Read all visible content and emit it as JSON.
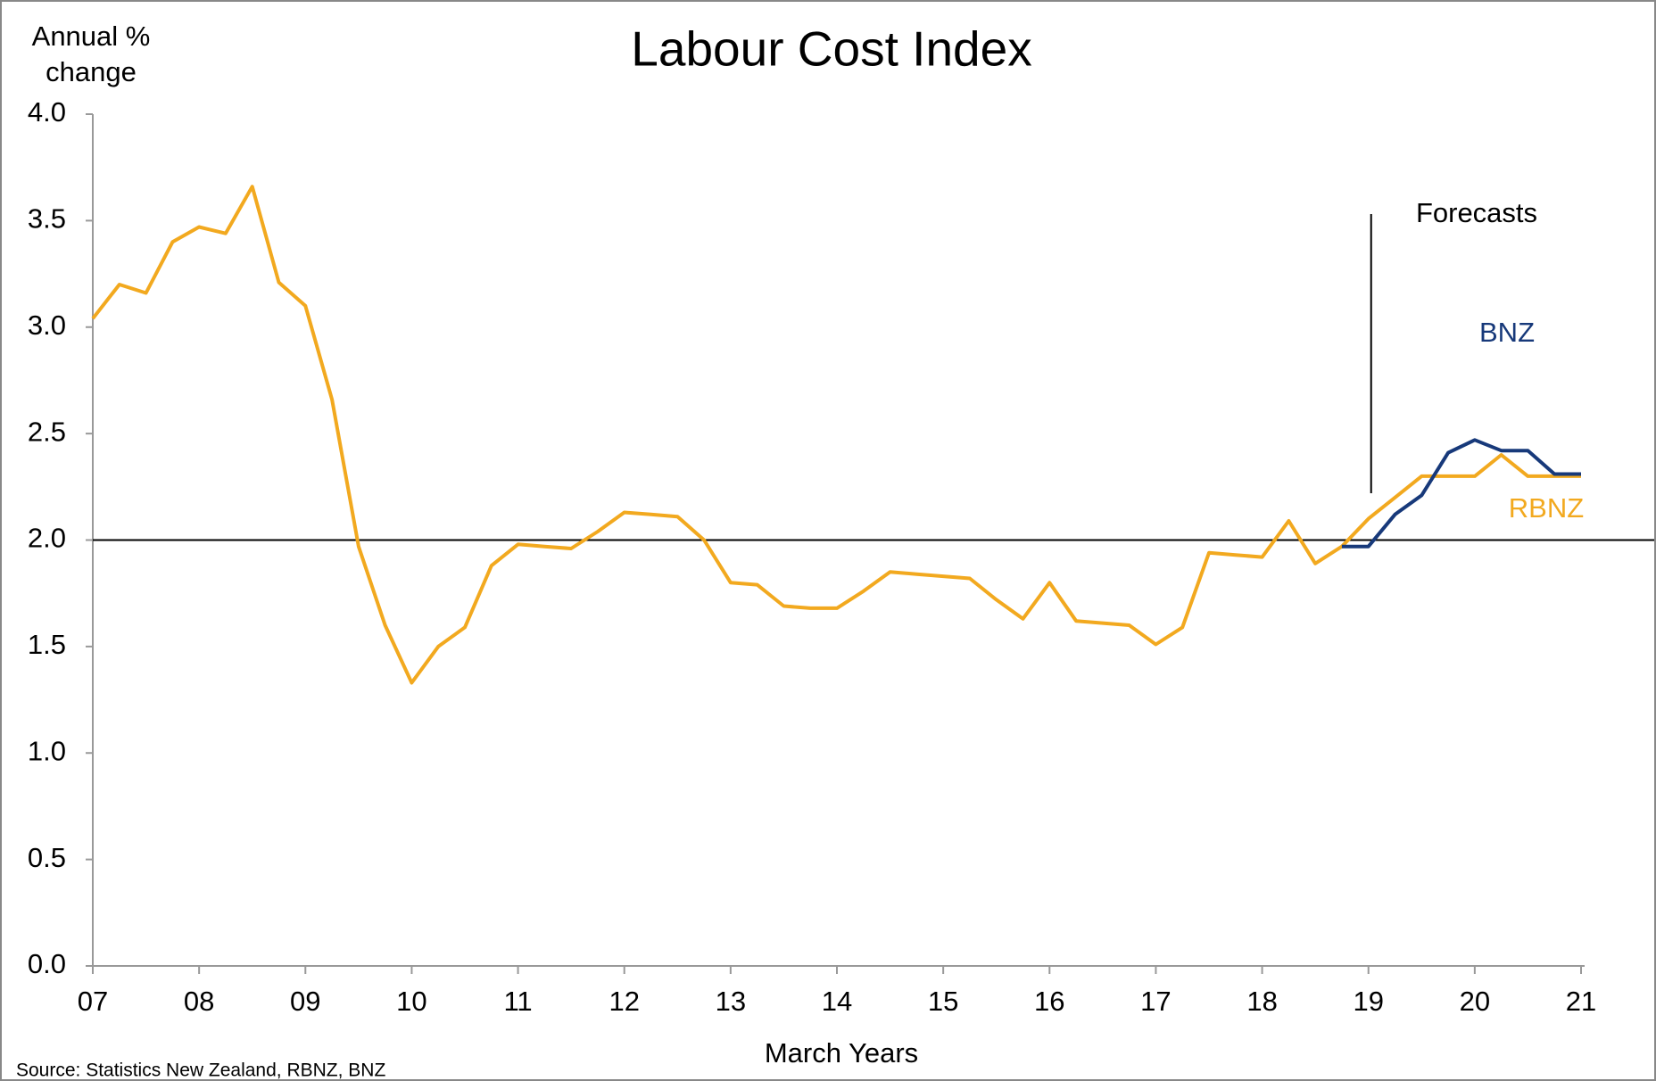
{
  "chart_data": {
    "type": "line",
    "title": "Labour Cost Index",
    "ylabel": [
      "Annual %",
      "change"
    ],
    "xlabel": "March Years",
    "source": "Source: Statistics New Zealand, RBNZ, BNZ",
    "x": [
      7,
      7.25,
      7.5,
      7.75,
      8,
      8.25,
      8.5,
      8.75,
      9,
      9.25,
      9.5,
      9.75,
      10,
      10.25,
      10.5,
      10.75,
      11,
      11.25,
      11.5,
      11.75,
      12,
      12.25,
      12.5,
      12.75,
      13,
      13.25,
      13.5,
      13.75,
      14,
      14.25,
      14.5,
      14.75,
      15,
      15.25,
      15.5,
      15.75,
      16,
      16.25,
      16.5,
      16.75,
      17,
      17.25,
      17.5,
      17.75,
      18,
      18.25,
      18.5,
      18.75,
      19,
      19.25,
      19.5,
      19.75,
      20,
      20.25,
      20.5,
      20.75,
      21
    ],
    "series": [
      {
        "name": "RBNZ",
        "color": "#f2a91f",
        "values": [
          3.04,
          3.2,
          3.16,
          3.4,
          3.47,
          3.44,
          3.66,
          3.21,
          3.1,
          2.66,
          1.97,
          1.6,
          1.33,
          1.5,
          1.59,
          1.88,
          1.98,
          1.97,
          1.96,
          2.04,
          2.13,
          2.12,
          2.11,
          2.0,
          1.8,
          1.79,
          1.69,
          1.68,
          1.68,
          1.76,
          1.85,
          1.84,
          1.83,
          1.82,
          1.72,
          1.63,
          1.8,
          1.62,
          1.61,
          1.6,
          1.51,
          1.59,
          1.94,
          1.93,
          1.92,
          2.09,
          1.89,
          1.97,
          2.1,
          2.2,
          2.3,
          2.3,
          2.3,
          2.4,
          2.3,
          2.3,
          2.3
        ]
      },
      {
        "name": "BNZ",
        "color": "#17397a",
        "values": [
          null,
          null,
          null,
          null,
          null,
          null,
          null,
          null,
          null,
          null,
          null,
          null,
          null,
          null,
          null,
          null,
          null,
          null,
          null,
          null,
          null,
          null,
          null,
          null,
          null,
          null,
          null,
          null,
          null,
          null,
          null,
          null,
          null,
          null,
          null,
          null,
          null,
          null,
          null,
          null,
          null,
          null,
          null,
          null,
          null,
          null,
          null,
          1.97,
          1.97,
          2.12,
          2.21,
          2.41,
          2.47,
          2.42,
          2.42,
          2.31,
          2.31
        ]
      }
    ],
    "annotation": "Forecasts",
    "forecast_x": 19,
    "hline": 2,
    "xlim": [
      7,
      21
    ],
    "xticks": [
      {
        "value": 7,
        "label": "07"
      },
      {
        "value": 8,
        "label": "08"
      },
      {
        "value": 9,
        "label": "09"
      },
      10,
      11,
      12,
      13,
      14,
      15,
      16,
      17,
      18,
      19,
      20,
      21
    ],
    "ylim": [
      0,
      4
    ],
    "yticks": [
      {
        "value": 0,
        "label": "0.0"
      },
      {
        "value": 0.5,
        "label": "0.5"
      },
      {
        "value": 1,
        "label": "1.0"
      },
      {
        "value": 1.5,
        "label": "1.5"
      },
      {
        "value": 2,
        "label": "2.0"
      },
      {
        "value": 2.5,
        "label": "2.5"
      },
      {
        "value": 3,
        "label": "3.0"
      },
      {
        "value": 3.5,
        "label": "3.5"
      },
      {
        "value": 4,
        "label": "4.0"
      }
    ],
    "grid": false
  }
}
